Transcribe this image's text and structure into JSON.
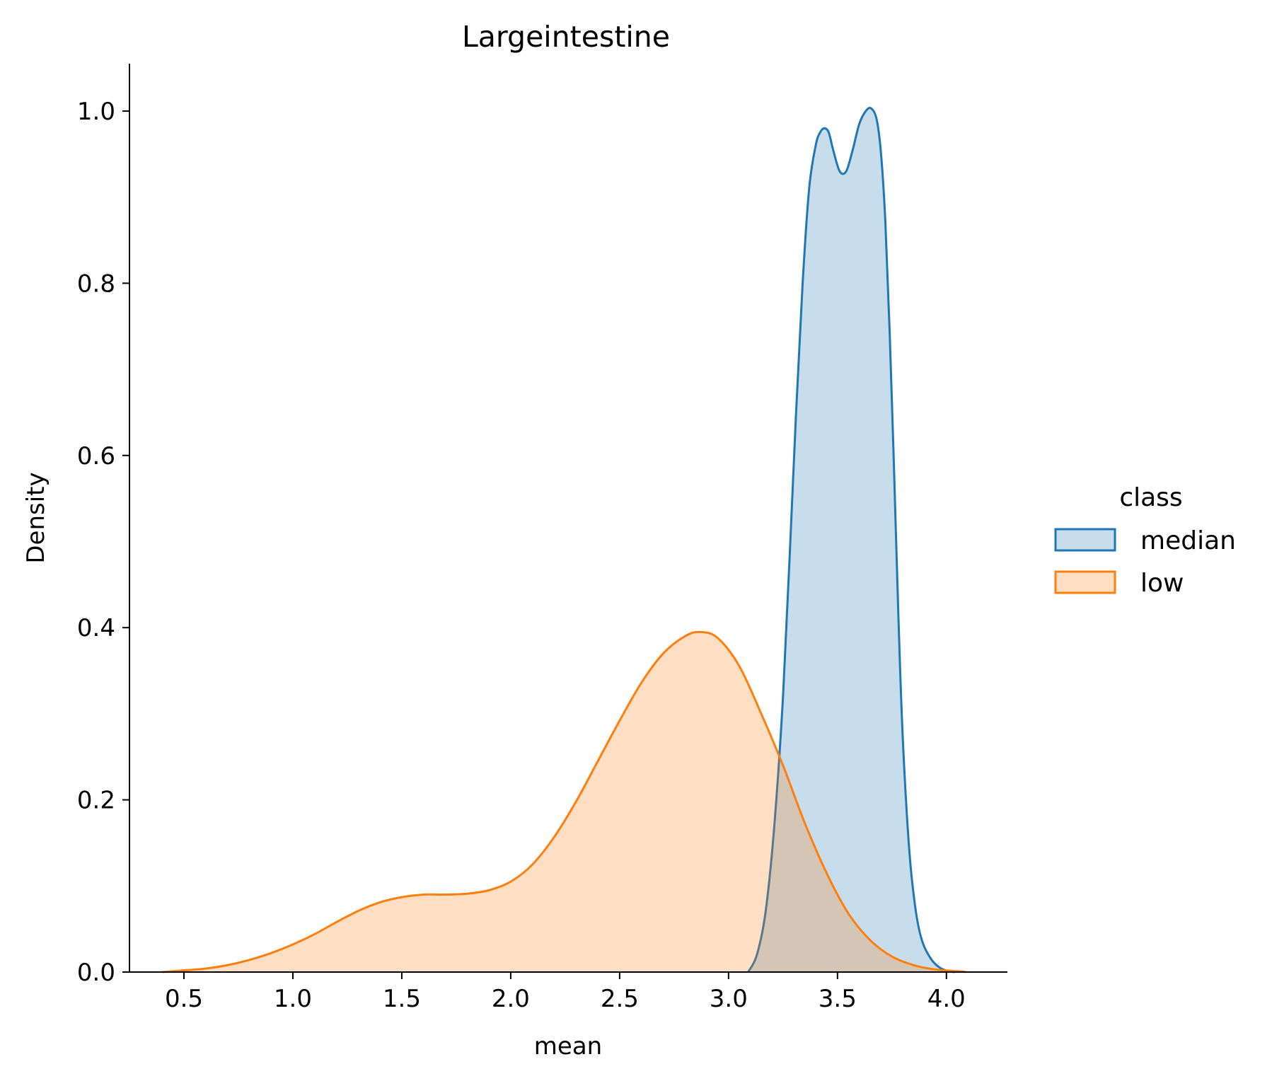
{
  "chart_data": {
    "type": "area",
    "title": "Largeintestine",
    "xlabel": "mean",
    "ylabel": "Density",
    "xlim": [
      0.25,
      4.28
    ],
    "ylim": [
      0,
      1.055
    ],
    "xticks": [
      {
        "value": 0.5,
        "label": "0.5"
      },
      {
        "value": 1.0,
        "label": "1.0"
      },
      {
        "value": 1.5,
        "label": "1.5"
      },
      {
        "value": 2.0,
        "label": "2.0"
      },
      {
        "value": 2.5,
        "label": "2.5"
      },
      {
        "value": 3.0,
        "label": "3.0"
      },
      {
        "value": 3.5,
        "label": "3.5"
      },
      {
        "value": 4.0,
        "label": "4.0"
      }
    ],
    "yticks": [
      {
        "value": 0.0,
        "label": "0.0"
      },
      {
        "value": 0.2,
        "label": "0.2"
      },
      {
        "value": 0.4,
        "label": "0.4"
      },
      {
        "value": 0.6,
        "label": "0.6"
      },
      {
        "value": 0.8,
        "label": "0.8"
      },
      {
        "value": 1.0,
        "label": "1.0"
      }
    ],
    "grid": false,
    "legend": {
      "title": "class",
      "placement": "right",
      "entries": [
        "median",
        "low"
      ]
    },
    "series": [
      {
        "name": "median",
        "color": "#1f77b4",
        "fill": "#1f77b4",
        "x": [
          3.09,
          3.13,
          3.17,
          3.21,
          3.25,
          3.28,
          3.31,
          3.34,
          3.37,
          3.4,
          3.42,
          3.44,
          3.46,
          3.48,
          3.51,
          3.54,
          3.57,
          3.6,
          3.63,
          3.655,
          3.68,
          3.7,
          3.72,
          3.74,
          3.76,
          3.78,
          3.8,
          3.83,
          3.86,
          3.89,
          3.93,
          3.97,
          4.01,
          4.04
        ],
        "y": [
          0.0,
          0.02,
          0.07,
          0.17,
          0.32,
          0.48,
          0.65,
          0.8,
          0.91,
          0.96,
          0.975,
          0.98,
          0.975,
          0.955,
          0.93,
          0.93,
          0.955,
          0.985,
          1.0,
          1.003,
          0.99,
          0.95,
          0.87,
          0.74,
          0.58,
          0.41,
          0.27,
          0.14,
          0.07,
          0.035,
          0.015,
          0.005,
          0.001,
          0.0
        ]
      },
      {
        "name": "low",
        "color": "#ff7f0e",
        "fill": "#ff7f0e",
        "x": [
          0.4,
          0.5,
          0.6,
          0.7,
          0.8,
          0.9,
          1.0,
          1.1,
          1.2,
          1.3,
          1.4,
          1.5,
          1.6,
          1.7,
          1.8,
          1.9,
          2.0,
          2.1,
          2.2,
          2.3,
          2.4,
          2.5,
          2.6,
          2.7,
          2.8,
          2.87,
          2.95,
          3.05,
          3.15,
          3.25,
          3.35,
          3.45,
          3.55,
          3.65,
          3.75,
          3.85,
          3.95,
          4.05,
          4.09
        ],
        "y": [
          0.0,
          0.002,
          0.004,
          0.008,
          0.014,
          0.022,
          0.032,
          0.044,
          0.058,
          0.071,
          0.081,
          0.087,
          0.09,
          0.09,
          0.091,
          0.095,
          0.105,
          0.125,
          0.157,
          0.198,
          0.245,
          0.292,
          0.336,
          0.37,
          0.39,
          0.395,
          0.388,
          0.355,
          0.3,
          0.24,
          0.173,
          0.115,
          0.068,
          0.037,
          0.018,
          0.008,
          0.003,
          0.001,
          0.0
        ]
      }
    ]
  }
}
